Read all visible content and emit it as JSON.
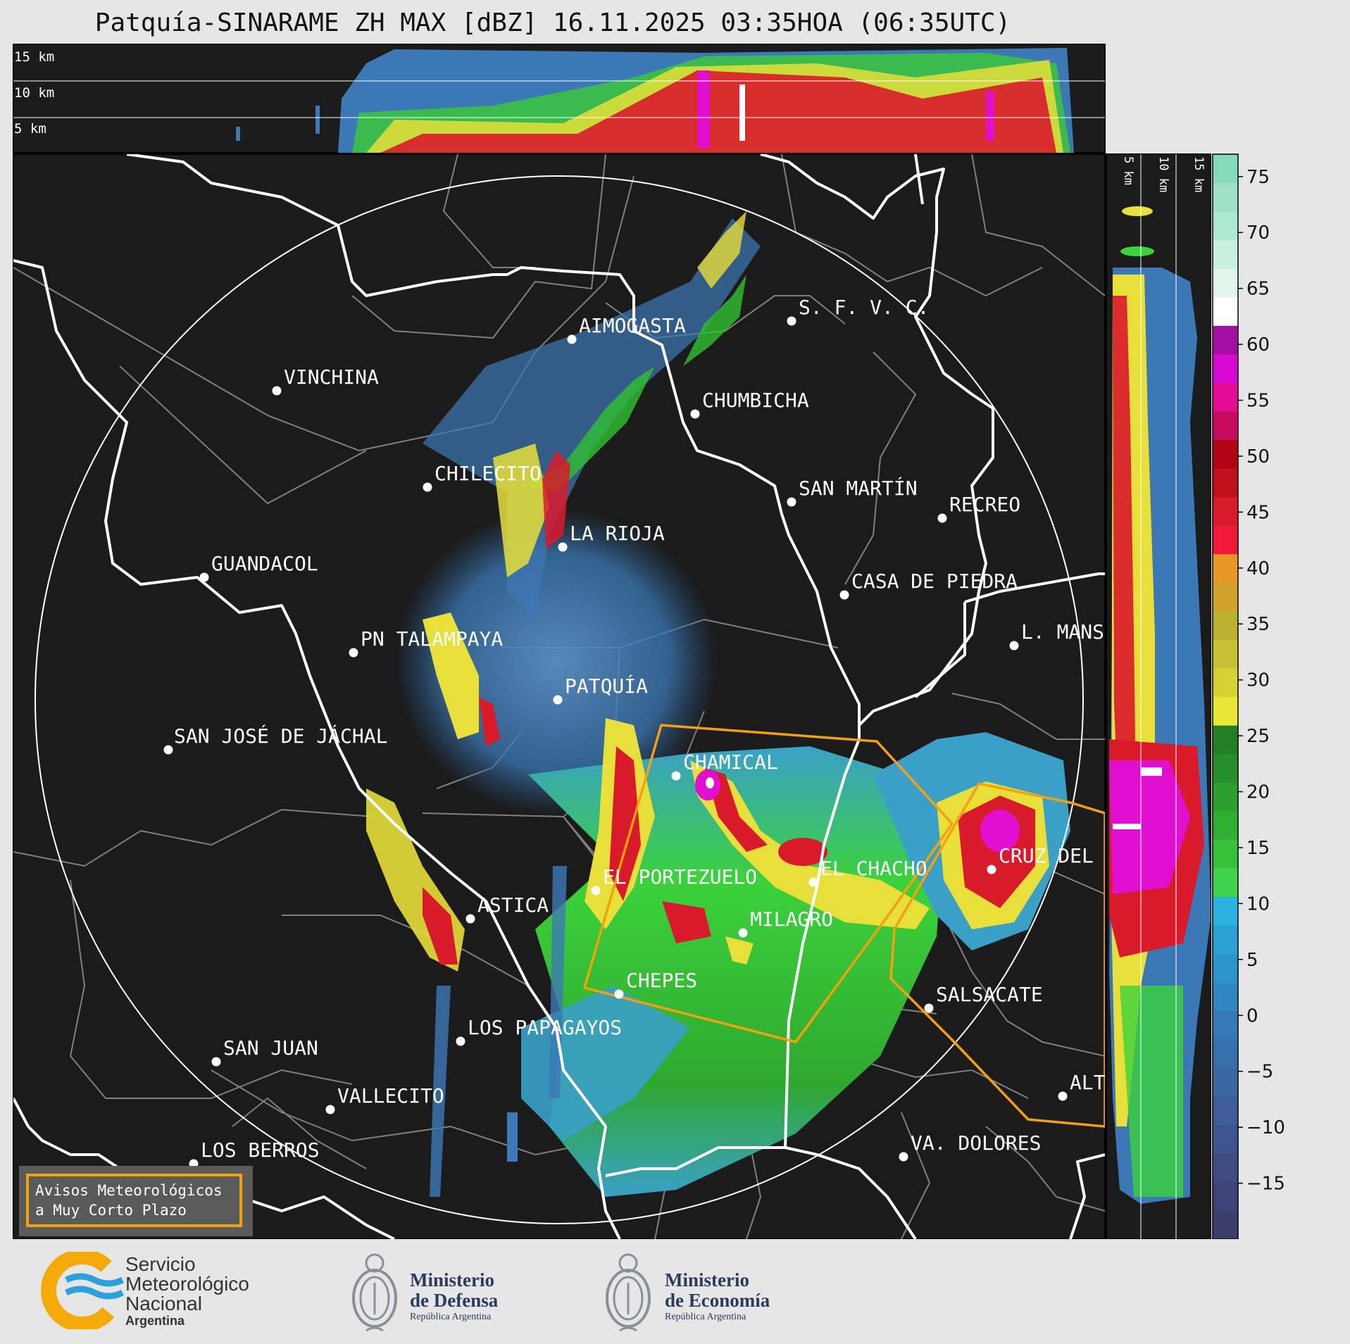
{
  "title": "Patquía-SINARAME ZH MAX [dBZ] 16.11.2025 03:35HOA (06:35UTC)",
  "top_profile": {
    "height_labels": [
      "15 km",
      "10 km",
      "5 km"
    ]
  },
  "side_profile": {
    "height_labels": [
      "5 km",
      "10 km",
      "15 km"
    ]
  },
  "colorbar": {
    "unit": "dBZ",
    "ticks": [
      "75",
      "70",
      "65",
      "60",
      "55",
      "50",
      "45",
      "40",
      "35",
      "30",
      "25",
      "20",
      "15",
      "10",
      "5",
      "0",
      "−5",
      "−10",
      "−15"
    ],
    "range": [
      -20,
      77
    ]
  },
  "cities": [
    {
      "name": "AIMOGASTA"
    },
    {
      "name": "S. F. V. C."
    },
    {
      "name": "VINCHINA"
    },
    {
      "name": "CHUMBICHA"
    },
    {
      "name": "CHILECITO"
    },
    {
      "name": "SAN MARTÍN"
    },
    {
      "name": "RECREO"
    },
    {
      "name": "LA RIOJA"
    },
    {
      "name": "GUANDACOL"
    },
    {
      "name": "CASA DE PIEDRA"
    },
    {
      "name": "L. MANS"
    },
    {
      "name": "PN TALAMPAYA"
    },
    {
      "name": "PATQUÍA"
    },
    {
      "name": "SAN JOSÉ DE JÁCHAL"
    },
    {
      "name": "CHAMICAL"
    },
    {
      "name": "CRUZ DEL"
    },
    {
      "name": "EL CHACHO"
    },
    {
      "name": "EL PORTEZUELO"
    },
    {
      "name": "ASTICA"
    },
    {
      "name": "MILAGRO"
    },
    {
      "name": "CHEPES"
    },
    {
      "name": "SALSACATE"
    },
    {
      "name": "LOS PAPAGAYOS"
    },
    {
      "name": "SAN JUAN"
    },
    {
      "name": "ALT"
    },
    {
      "name": "VALLECITO"
    },
    {
      "name": "VA. DOLORES"
    },
    {
      "name": "LOS BERROS"
    }
  ],
  "legend_box": {
    "line1": "Avisos Meteorológicos",
    "line2": "a Muy Corto Plazo"
  },
  "colors": {
    "background": "#1b1b1b",
    "warning": "#f5a00c",
    "page": "#e6e6e6"
  },
  "logos": {
    "smn": {
      "line1": "Servicio",
      "line2": "Meteorológico",
      "line3": "Nacional",
      "country": "Argentina"
    },
    "defensa": {
      "line1": "Ministerio",
      "line2": "de Defensa",
      "sub": "República Argentina"
    },
    "economia": {
      "line1": "Ministerio",
      "line2": "de Economía",
      "sub": "República Argentina"
    }
  }
}
